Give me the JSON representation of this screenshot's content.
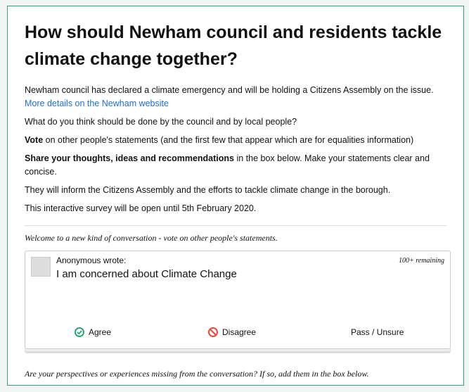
{
  "header": {
    "title": "How should Newham council and residents tackle climate change together?"
  },
  "intro": {
    "p1": "Newham council has declared a climate emergency and will be holding a Citizens Assembly on the issue.",
    "link": "More details on the Newham website",
    "p2": "What do you think should be done by the council and by local people?",
    "p3_bold": "Vote",
    "p3_rest": " on other people's statements (and the first few that appear which are for equalities information)",
    "p4_bold": "Share your thoughts, ideas and recommendations",
    "p4_rest": " in the box below. Make your statements clear and concise.",
    "p5": "They will inform the Citizens Assembly and the efforts to tackle climate change in the borough.",
    "p6": "This interactive survey will be open until 5th February 2020."
  },
  "welcome": "Welcome to a new kind of conversation - vote on other people's statements.",
  "card": {
    "author": "Anonymous wrote:",
    "remaining": "100+ remaining",
    "statement": "I am concerned about Climate Change",
    "agree": "Agree",
    "disagree": "Disagree",
    "pass": "Pass / Unsure"
  },
  "footer": "Are your perspectives or experiences missing from the conversation? If so, add them in the box below."
}
